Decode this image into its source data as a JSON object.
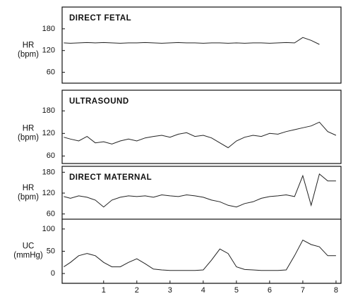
{
  "chart_data": [
    {
      "type": "line",
      "title": "DIRECT FETAL",
      "ylabel": [
        "HR",
        "(bpm)"
      ],
      "color": "#222222",
      "x": [
        -0.2,
        0,
        0.25,
        0.5,
        0.75,
        1,
        1.25,
        1.5,
        1.75,
        2,
        2.25,
        2.5,
        2.75,
        3,
        3.25,
        3.5,
        3.75,
        4,
        4.25,
        4.5,
        4.75,
        5,
        5.25,
        5.5,
        5.75,
        6,
        6.25,
        6.5,
        6.75,
        7,
        7.25,
        7.5,
        7.75,
        8
      ],
      "values": [
        141,
        140,
        141,
        142,
        141,
        142,
        141,
        140,
        141,
        141,
        142,
        141,
        140,
        141,
        142,
        141,
        141,
        140,
        141,
        141,
        140,
        141,
        140,
        141,
        141,
        140,
        141,
        142,
        141,
        156,
        148,
        137,
        null,
        null
      ],
      "xlim": [
        -0.25,
        8.15
      ],
      "ylim": [
        30,
        240
      ],
      "yticks": [
        60,
        120,
        180
      ]
    },
    {
      "type": "line",
      "title": "ULTRASOUND",
      "ylabel": [
        "HR",
        "(bpm)"
      ],
      "color": "#222222",
      "x": [
        -0.2,
        0,
        0.25,
        0.5,
        0.75,
        1,
        1.25,
        1.5,
        1.75,
        2,
        2.25,
        2.5,
        2.75,
        3,
        3.25,
        3.5,
        3.75,
        4,
        4.25,
        4.5,
        4.75,
        5,
        5.25,
        5.5,
        5.75,
        6,
        6.25,
        6.5,
        6.75,
        7,
        7.25,
        7.5,
        7.75,
        8
      ],
      "values": [
        110,
        105,
        100,
        112,
        95,
        98,
        92,
        100,
        105,
        100,
        108,
        112,
        115,
        110,
        118,
        122,
        112,
        115,
        108,
        95,
        82,
        100,
        110,
        115,
        112,
        120,
        118,
        125,
        130,
        135,
        140,
        150,
        125,
        115
      ],
      "xlim": [
        -0.25,
        8.15
      ],
      "ylim": [
        40,
        235
      ],
      "yticks": [
        60,
        120,
        180
      ]
    },
    {
      "type": "line",
      "title": "DIRECT MATERNAL",
      "ylabel": [
        "HR",
        "(bpm)"
      ],
      "color": "#222222",
      "x": [
        -0.2,
        0,
        0.25,
        0.5,
        0.75,
        1,
        1.25,
        1.5,
        1.75,
        2,
        2.25,
        2.5,
        2.75,
        3,
        3.25,
        3.5,
        3.75,
        4,
        4.25,
        4.5,
        4.75,
        5,
        5.25,
        5.5,
        5.75,
        6,
        6.25,
        6.5,
        6.75,
        7,
        7.25,
        7.5,
        7.75,
        8
      ],
      "values": [
        110,
        105,
        112,
        108,
        100,
        80,
        100,
        108,
        112,
        110,
        112,
        108,
        115,
        112,
        110,
        115,
        112,
        108,
        100,
        95,
        85,
        80,
        90,
        95,
        105,
        110,
        112,
        115,
        110,
        170,
        85,
        175,
        155,
        155
      ],
      "xlim": [
        -0.25,
        8.15
      ],
      "ylim": [
        45,
        197
      ],
      "yticks": [
        60,
        120,
        180
      ]
    },
    {
      "type": "line",
      "ylabel": [
        "UC",
        "(mmHg)"
      ],
      "color": "#222222",
      "x": [
        -0.2,
        0,
        0.25,
        0.5,
        0.75,
        1,
        1.25,
        1.5,
        1.75,
        2,
        2.25,
        2.5,
        2.75,
        3,
        3.25,
        3.5,
        3.75,
        4,
        4.25,
        4.5,
        4.75,
        5,
        5.25,
        5.5,
        5.75,
        6,
        6.25,
        6.5,
        6.75,
        7,
        7.25,
        7.5,
        7.75,
        8
      ],
      "values": [
        15,
        25,
        40,
        45,
        40,
        25,
        15,
        15,
        25,
        33,
        22,
        10,
        8,
        7,
        7,
        7,
        7,
        8,
        30,
        55,
        45,
        15,
        9,
        8,
        7,
        7,
        7,
        8,
        40,
        75,
        65,
        60,
        40,
        40
      ],
      "xlim": [
        -0.25,
        8.15
      ],
      "ylim": [
        -22,
        122
      ],
      "yticks": [
        0,
        50,
        100
      ],
      "xticks": [
        1,
        2,
        3,
        4,
        5,
        6,
        7,
        8
      ]
    }
  ]
}
